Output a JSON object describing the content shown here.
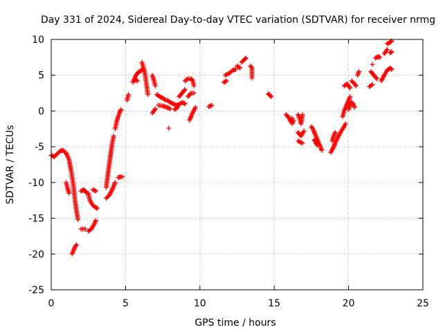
{
  "chart_data": {
    "type": "scatter",
    "title": "Day 331 of 2024, Sidereal Day-to-day VTEC variation (SDTVAR) for receiver nrmg",
    "xlabel": "GPS time / hours",
    "ylabel": "SDTVAR / TECUs",
    "xlim": [
      0,
      25
    ],
    "ylim": [
      -25,
      10
    ],
    "xticks": [
      0,
      5,
      10,
      15,
      20,
      25
    ],
    "yticks": [
      -25,
      -20,
      -15,
      -10,
      -5,
      0,
      5,
      10
    ],
    "grid": true,
    "marker": "plus",
    "series_color": "#ff0000",
    "segments": [
      [
        [
          0.0,
          -6.2
        ],
        [
          0.2,
          -6.4
        ],
        [
          0.4,
          -6.0
        ],
        [
          0.6,
          -5.6
        ],
        [
          0.8,
          -5.5
        ],
        [
          1.0,
          -5.9
        ],
        [
          1.2,
          -6.8
        ],
        [
          1.35,
          -8.5
        ],
        [
          1.5,
          -10.5
        ],
        [
          1.6,
          -12.5
        ],
        [
          1.7,
          -14.0
        ],
        [
          1.8,
          -15.2
        ]
      ],
      [
        [
          1.0,
          -10.0
        ],
        [
          1.1,
          -10.8
        ],
        [
          1.2,
          -11.5
        ]
      ],
      [
        [
          1.4,
          -20.0
        ],
        [
          1.5,
          -19.5
        ],
        [
          1.6,
          -19.0
        ],
        [
          1.7,
          -18.7
        ]
      ],
      [
        [
          2.0,
          -11.2
        ],
        [
          2.2,
          -11.0
        ],
        [
          2.4,
          -11.5
        ]
      ],
      [
        [
          2.0,
          -16.5
        ],
        [
          2.3,
          -16.5
        ]
      ],
      [
        [
          2.5,
          -11.5
        ],
        [
          2.6,
          -12.5
        ],
        [
          2.8,
          -13.2
        ],
        [
          3.0,
          -13.5
        ],
        [
          3.1,
          -13.6
        ]
      ],
      [
        [
          2.5,
          -16.8
        ],
        [
          2.7,
          -16.5
        ],
        [
          2.9,
          -15.8
        ],
        [
          3.0,
          -15.3
        ]
      ],
      [
        [
          2.8,
          -11.0
        ],
        [
          3.0,
          -11.2
        ]
      ],
      [
        [
          3.7,
          -12.2
        ],
        [
          3.9,
          -11.8
        ],
        [
          4.1,
          -11.0
        ],
        [
          4.3,
          -10.0
        ]
      ],
      [
        [
          3.7,
          -10.7
        ],
        [
          3.8,
          -9.0
        ],
        [
          3.9,
          -7.5
        ],
        [
          4.0,
          -6.0
        ],
        [
          4.1,
          -4.5
        ],
        [
          4.2,
          -3.5
        ]
      ],
      [
        [
          4.3,
          -2.5
        ],
        [
          4.4,
          -1.5
        ],
        [
          4.5,
          -0.8
        ],
        [
          4.6,
          -0.2
        ],
        [
          4.7,
          0.2
        ]
      ],
      [
        [
          4.5,
          -9.3
        ],
        [
          4.7,
          -9.2
        ],
        [
          4.8,
          -9.2
        ]
      ],
      [
        [
          5.1,
          1.5
        ],
        [
          5.2,
          2.3
        ]
      ],
      [
        [
          5.5,
          4.0
        ],
        [
          5.7,
          5.0
        ],
        [
          5.9,
          5.5
        ],
        [
          6.1,
          5.7
        ]
      ],
      [
        [
          5.6,
          4.5
        ],
        [
          5.8,
          4.2
        ]
      ],
      [
        [
          6.1,
          6.8
        ],
        [
          6.3,
          5.3
        ],
        [
          6.5,
          2.3
        ]
      ],
      [
        [
          6.8,
          -0.3
        ],
        [
          7.0,
          0.3
        ]
      ],
      [
        [
          6.8,
          5.0
        ],
        [
          6.9,
          4.3
        ],
        [
          7.0,
          3.5
        ]
      ],
      [
        [
          7.1,
          2.3
        ],
        [
          7.3,
          2.0
        ],
        [
          7.5,
          1.8
        ],
        [
          7.7,
          1.5
        ]
      ],
      [
        [
          7.2,
          0.8
        ],
        [
          7.5,
          0.7
        ],
        [
          7.8,
          0.5
        ],
        [
          8.0,
          0.3
        ]
      ],
      [
        [
          7.9,
          -2.4
        ]
      ],
      [
        [
          7.8,
          1.5
        ],
        [
          8.0,
          1.2
        ],
        [
          8.2,
          1.0
        ],
        [
          8.4,
          0.8
        ],
        [
          8.6,
          0.9
        ],
        [
          8.8,
          1.2
        ],
        [
          9.0,
          1.0
        ]
      ],
      [
        [
          8.3,
          0.2
        ],
        [
          8.5,
          0.5
        ]
      ],
      [
        [
          8.6,
          2.0
        ],
        [
          8.8,
          2.5
        ],
        [
          9.0,
          3.0
        ]
      ],
      [
        [
          9.0,
          4.2
        ],
        [
          9.2,
          4.5
        ],
        [
          9.4,
          4.5
        ],
        [
          9.5,
          4.3
        ],
        [
          9.6,
          3.5
        ]
      ],
      [
        [
          9.2,
          2.0
        ],
        [
          9.4,
          2.5
        ],
        [
          9.6,
          2.5
        ]
      ],
      [
        [
          9.3,
          -1.3
        ],
        [
          9.5,
          -0.3
        ],
        [
          9.7,
          0.5
        ]
      ],
      [
        [
          10.6,
          0.6
        ],
        [
          10.8,
          0.8
        ]
      ],
      [
        [
          11.6,
          4.0
        ],
        [
          11.8,
          4.2
        ]
      ],
      [
        [
          11.7,
          5.0
        ],
        [
          12.0,
          5.3
        ],
        [
          12.2,
          5.7
        ],
        [
          12.4,
          5.8
        ]
      ],
      [
        [
          12.5,
          6.3
        ],
        [
          12.7,
          6.0
        ]
      ],
      [
        [
          12.8,
          6.8
        ],
        [
          13.0,
          7.2
        ],
        [
          13.1,
          7.4
        ]
      ],
      [
        [
          13.4,
          6.3
        ],
        [
          13.5,
          6.0
        ],
        [
          13.5,
          4.6
        ]
      ],
      [
        [
          14.6,
          2.4
        ],
        [
          14.7,
          2.2
        ],
        [
          14.8,
          2.0
        ]
      ],
      [
        [
          15.8,
          -0.5
        ],
        [
          16.0,
          -1.0
        ],
        [
          16.1,
          -1.5
        ],
        [
          16.2,
          -1.0
        ]
      ],
      [
        [
          16.2,
          -1.8
        ],
        [
          16.3,
          -1.3
        ]
      ],
      [
        [
          16.6,
          -0.5
        ],
        [
          16.7,
          -1.0
        ],
        [
          16.8,
          -1.8
        ],
        [
          16.9,
          -0.5
        ]
      ],
      [
        [
          16.6,
          -3.0
        ],
        [
          16.8,
          -3.5
        ],
        [
          17.0,
          -2.8
        ]
      ],
      [
        [
          16.6,
          -4.2
        ],
        [
          16.9,
          -4.5
        ]
      ],
      [
        [
          17.5,
          -2.2
        ],
        [
          17.6,
          -2.5
        ],
        [
          17.7,
          -3.0
        ],
        [
          17.8,
          -3.5
        ],
        [
          17.9,
          -4.0
        ],
        [
          18.0,
          -4.5
        ],
        [
          18.1,
          -5.0
        ],
        [
          18.2,
          -5.5
        ]
      ],
      [
        [
          17.7,
          -4.0
        ],
        [
          17.8,
          -4.4
        ],
        [
          17.9,
          -4.8
        ]
      ],
      [
        [
          18.8,
          -5.8
        ],
        [
          19.0,
          -5.0
        ],
        [
          19.2,
          -4.0
        ],
        [
          19.4,
          -3.2
        ],
        [
          19.6,
          -2.5
        ],
        [
          19.8,
          -1.8
        ]
      ],
      [
        [
          18.9,
          -4.2
        ],
        [
          19.0,
          -3.5
        ],
        [
          19.1,
          -3.0
        ]
      ],
      [
        [
          19.6,
          -0.8
        ],
        [
          19.7,
          0.0
        ],
        [
          19.8,
          0.5
        ],
        [
          19.9,
          1.0
        ],
        [
          20.0,
          1.5
        ],
        [
          20.1,
          2.0
        ]
      ],
      [
        [
          20.0,
          0.2
        ],
        [
          20.1,
          0.8
        ],
        [
          20.2,
          1.2
        ],
        [
          20.3,
          1.0
        ],
        [
          20.4,
          0.5
        ]
      ],
      [
        [
          19.7,
          3.5
        ],
        [
          19.9,
          3.8
        ],
        [
          20.1,
          3.2
        ]
      ],
      [
        [
          20.2,
          4.2
        ],
        [
          20.4,
          3.8
        ],
        [
          20.5,
          3.5
        ]
      ],
      [
        [
          20.6,
          5.0
        ],
        [
          20.7,
          5.5
        ]
      ],
      [
        [
          21.4,
          3.4
        ],
        [
          21.6,
          3.7
        ]
      ],
      [
        [
          21.5,
          5.5
        ],
        [
          21.7,
          5.0
        ],
        [
          21.9,
          4.5
        ]
      ],
      [
        [
          21.6,
          6.5
        ]
      ],
      [
        [
          21.8,
          7.4
        ],
        [
          22.0,
          7.6
        ],
        [
          22.1,
          7.5
        ]
      ],
      [
        [
          22.2,
          4.2
        ],
        [
          22.4,
          5.0
        ],
        [
          22.6,
          5.7
        ],
        [
          22.8,
          6.0
        ],
        [
          22.9,
          5.8
        ]
      ],
      [
        [
          22.4,
          8.0
        ],
        [
          22.6,
          8.6
        ]
      ],
      [
        [
          22.6,
          9.4
        ],
        [
          22.8,
          9.6
        ],
        [
          22.9,
          9.8
        ]
      ],
      [
        [
          22.8,
          8.1
        ],
        [
          22.9,
          8.3
        ]
      ]
    ]
  }
}
